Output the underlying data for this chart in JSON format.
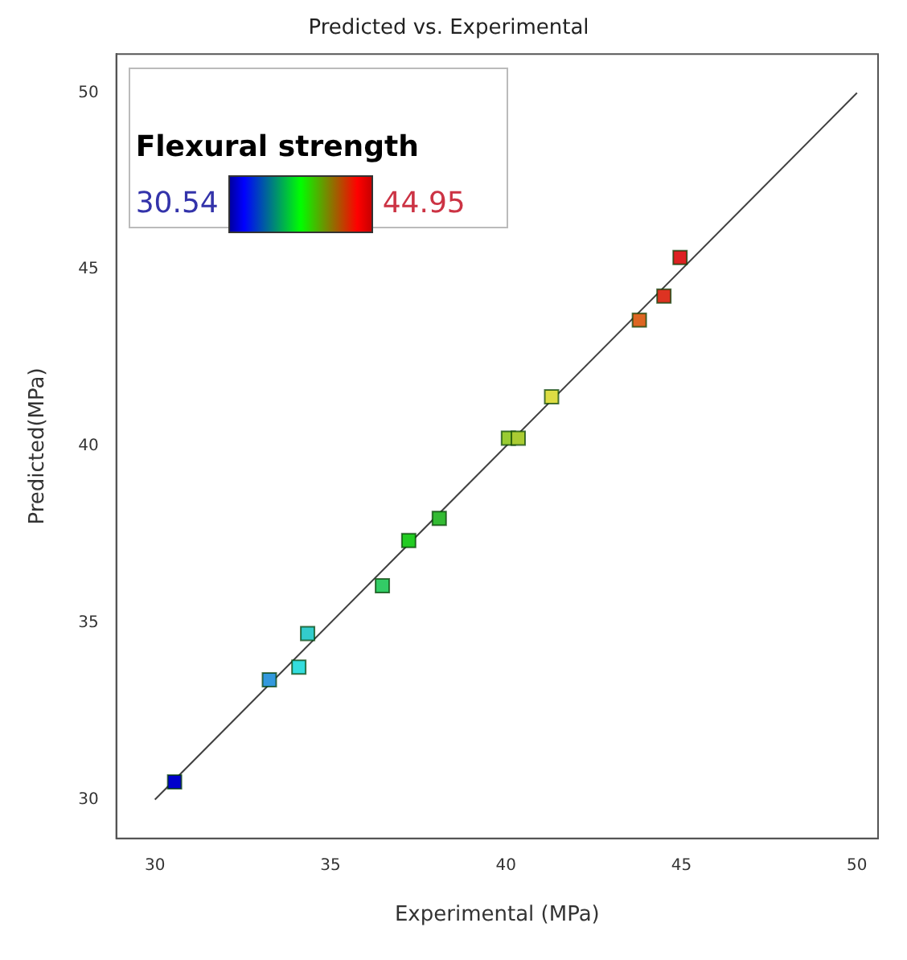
{
  "chart_data": {
    "type": "scatter",
    "title": "Predicted vs. Experimental",
    "xlabel": "Experimental (MPa)",
    "ylabel": "Predicted(MPa)",
    "clabel": "Flexural strength",
    "annotations": [
      "30.54",
      "44.95"
    ],
    "xlim": [
      28.9,
      50.6
    ],
    "ylim": [
      28.9,
      51.1
    ],
    "xticks": [
      30,
      35,
      40,
      45,
      50
    ],
    "yticks": [
      30,
      35,
      40,
      45,
      50
    ],
    "series": [
      {
        "marker": "square",
        "x": [
          30.56,
          33.26,
          34.1,
          34.35,
          36.48,
          37.23,
          38.1,
          40.07,
          40.35,
          41.3,
          43.8,
          44.5,
          44.96
        ],
        "values": [
          30.5,
          33.39,
          33.75,
          34.7,
          36.05,
          37.33,
          37.96,
          40.23,
          40.23,
          41.4,
          43.57,
          44.25,
          45.34
        ],
        "colors": [
          "#0000cc",
          "#3399dd",
          "#33dddd",
          "#33cccc",
          "#33cc66",
          "#22cc22",
          "#33bb33",
          "#99cc33",
          "#aacc33",
          "#dddd44",
          "#dd6622",
          "#dd3322",
          "#dd2222"
        ]
      },
      {
        "type": "line",
        "x": [
          30,
          50
        ],
        "values": [
          30,
          50
        ],
        "color": "#404040"
      }
    ]
  }
}
